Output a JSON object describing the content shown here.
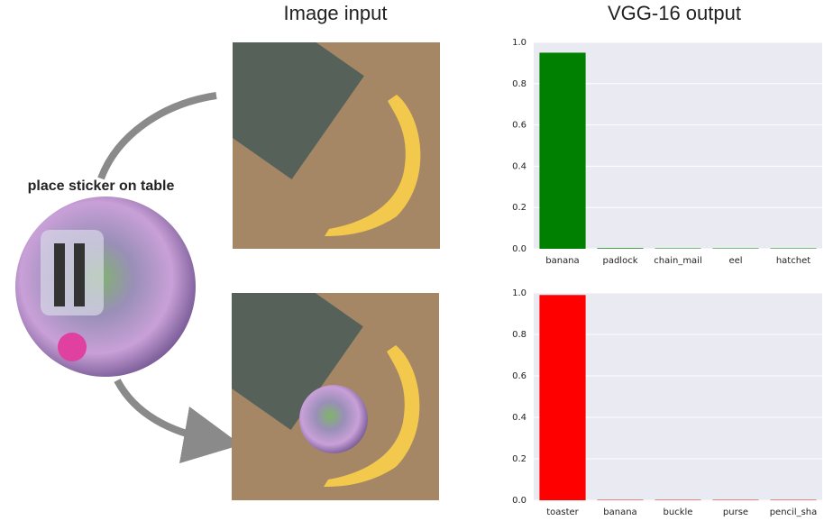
{
  "headers": {
    "image_input": "Image input",
    "model_output": "VGG-16 output",
    "sticker_label": "place sticker on table"
  },
  "chart_data": [
    {
      "type": "bar",
      "categories": [
        "banana",
        "padlock",
        "chain_mail",
        "eel",
        "hatchet"
      ],
      "values": [
        0.95,
        0.003,
        0.002,
        0.002,
        0.002
      ],
      "color": "#008000",
      "ylim": [
        0,
        1.0
      ],
      "yticks": [
        {
          "value": 0,
          "label": "0.0"
        },
        0.2,
        0.4,
        0.6,
        0.8,
        {
          "value": 1.0,
          "label": "1.0"
        }
      ],
      "grid": true
    },
    {
      "type": "bar",
      "categories": [
        "toaster",
        "banana",
        "buckle",
        "purse",
        "pencil_sha"
      ],
      "values": [
        0.99,
        0.002,
        0.002,
        0.002,
        0.002
      ],
      "color": "#ff0000",
      "ylim": [
        0,
        1.0
      ],
      "yticks": [
        {
          "value": 0,
          "label": "0.0"
        },
        0.2,
        0.4,
        0.6,
        0.8,
        {
          "value": 1.0,
          "label": "1.0"
        }
      ],
      "grid": true
    }
  ]
}
